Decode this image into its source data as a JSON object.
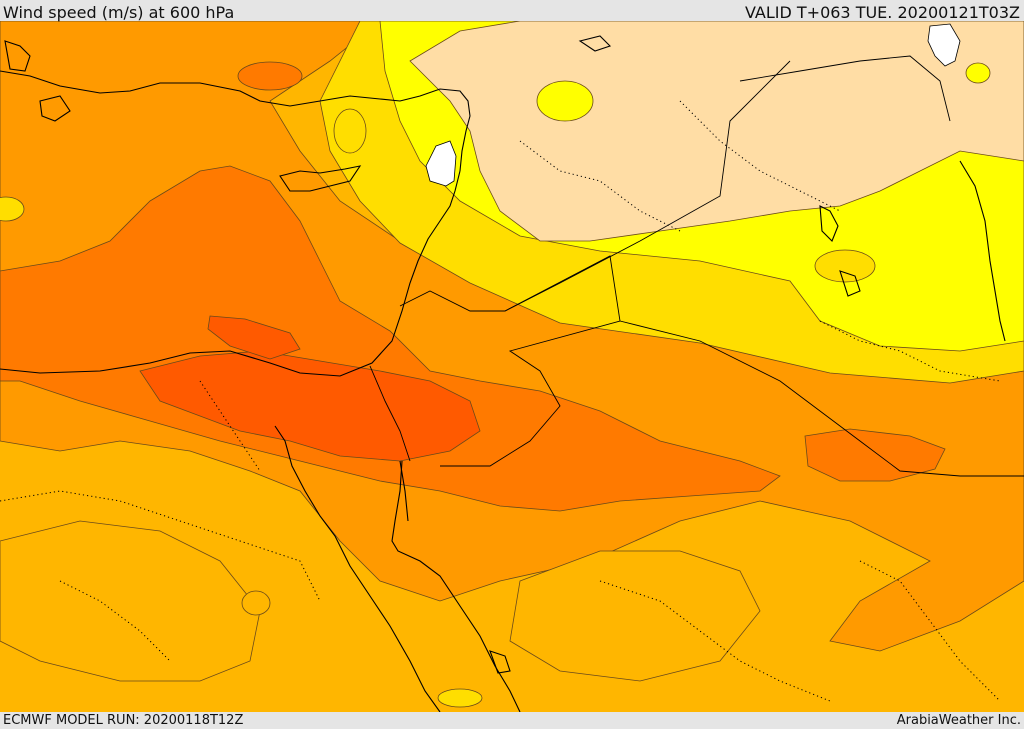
{
  "header": {
    "title": "Wind speed (m/s) at 600 hPa",
    "valid_time": "VALID T+063 TUE. 20200121T03Z"
  },
  "footer": {
    "model_run": "ECMWF MODEL RUN: 20200118T12Z",
    "credit": "ArabiaWeather Inc."
  },
  "map": {
    "variable": "wind speed",
    "units": "m/s",
    "level": "600 hPa",
    "colors": {
      "fill_lightest": "#ffdda5",
      "fill_yellow": "#ffff00",
      "fill_gold": "#ffde00",
      "fill_amber": "#ffb600",
      "fill_orange": "#ff9a00",
      "fill_dark_orange": "#ff7a00",
      "fill_red_orange": "#ff5a00",
      "coastline": "#000000",
      "contour": "#555555"
    }
  }
}
